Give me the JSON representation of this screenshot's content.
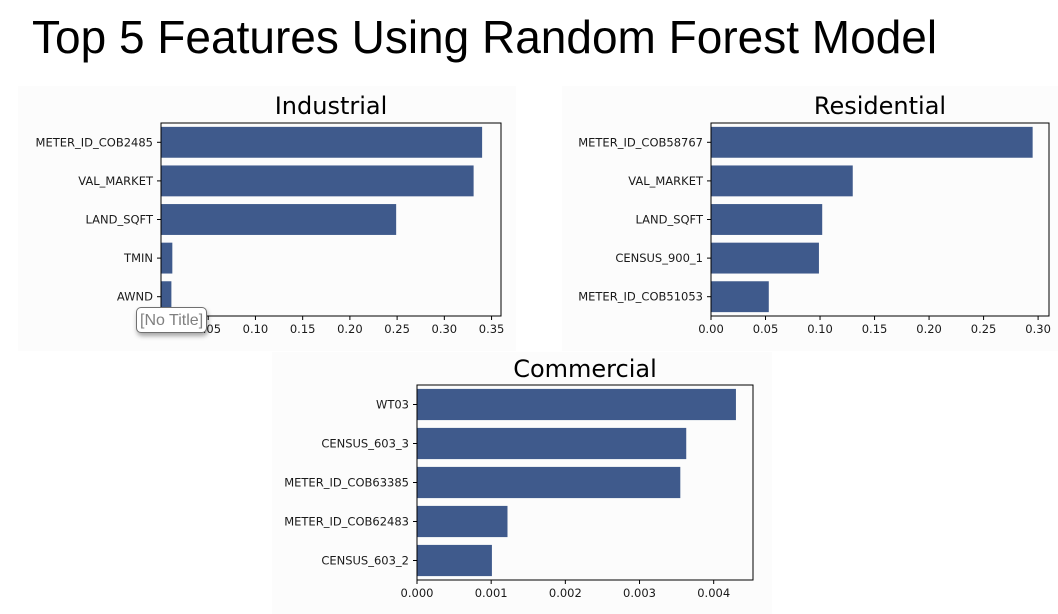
{
  "slide": {
    "title": "Top 5 Features Using Random Forest Model"
  },
  "tooltip": {
    "text": "[No Title]"
  },
  "colors": {
    "bar": "#3f5a8c",
    "panel_background": "#fcfcfc",
    "axis": "#000000"
  },
  "chart_data": [
    {
      "type": "bar",
      "orientation": "horizontal",
      "title": "Industrial",
      "categories": [
        "METER_ID_COB2485",
        "VAL_MARKET",
        "LAND_SQFT",
        "TMIN",
        "AWND"
      ],
      "values": [
        0.34,
        0.331,
        0.249,
        0.012,
        0.011
      ],
      "xlim": [
        0,
        0.36
      ],
      "xticks": [
        "0.00",
        "0.05",
        "0.10",
        "0.15",
        "0.20",
        "0.25",
        "0.30",
        "0.35"
      ],
      "grid": false,
      "legend": "none"
    },
    {
      "type": "bar",
      "orientation": "horizontal",
      "title": "Residential",
      "categories": [
        "METER_ID_COB58767",
        "VAL_MARKET",
        "LAND_SQFT",
        "CENSUS_900_1",
        "METER_ID_COB51053"
      ],
      "values": [
        0.295,
        0.13,
        0.102,
        0.099,
        0.053
      ],
      "xlim": [
        0,
        0.31
      ],
      "xticks": [
        "0.00",
        "0.05",
        "0.10",
        "0.15",
        "0.20",
        "0.25",
        "0.30"
      ],
      "grid": false,
      "legend": "none"
    },
    {
      "type": "bar",
      "orientation": "horizontal",
      "title": "Commercial",
      "categories": [
        "WT03",
        "CENSUS_603_3",
        "METER_ID_COB63385",
        "METER_ID_COB62483",
        "CENSUS_603_2"
      ],
      "values": [
        0.0043,
        0.00363,
        0.00355,
        0.00122,
        0.00101
      ],
      "xlim": [
        0,
        0.00453
      ],
      "xticks": [
        "0.000",
        "0.001",
        "0.002",
        "0.003",
        "0.004"
      ],
      "grid": false,
      "legend": "none"
    }
  ]
}
